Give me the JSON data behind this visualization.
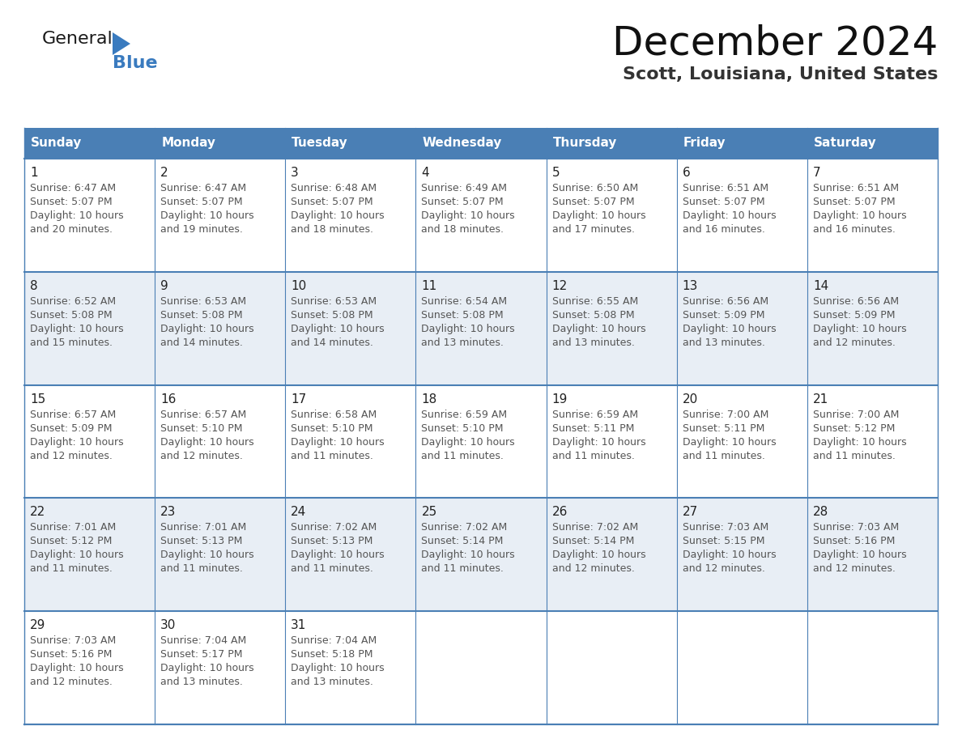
{
  "title": "December 2024",
  "subtitle": "Scott, Louisiana, United States",
  "header_color": "#4a7fb5",
  "header_text_color": "#ffffff",
  "row_colors": [
    "#ffffff",
    "#e8eef5"
  ],
  "cell_border_color": "#4a7fb5",
  "weekdays": [
    "Sunday",
    "Monday",
    "Tuesday",
    "Wednesday",
    "Thursday",
    "Friday",
    "Saturday"
  ],
  "weeks": [
    [
      {
        "day": 1,
        "sunrise": "6:47 AM",
        "sunset": "5:07 PM",
        "daylight": "10 hours\nand 20 minutes."
      },
      {
        "day": 2,
        "sunrise": "6:47 AM",
        "sunset": "5:07 PM",
        "daylight": "10 hours\nand 19 minutes."
      },
      {
        "day": 3,
        "sunrise": "6:48 AM",
        "sunset": "5:07 PM",
        "daylight": "10 hours\nand 18 minutes."
      },
      {
        "day": 4,
        "sunrise": "6:49 AM",
        "sunset": "5:07 PM",
        "daylight": "10 hours\nand 18 minutes."
      },
      {
        "day": 5,
        "sunrise": "6:50 AM",
        "sunset": "5:07 PM",
        "daylight": "10 hours\nand 17 minutes."
      },
      {
        "day": 6,
        "sunrise": "6:51 AM",
        "sunset": "5:07 PM",
        "daylight": "10 hours\nand 16 minutes."
      },
      {
        "day": 7,
        "sunrise": "6:51 AM",
        "sunset": "5:07 PM",
        "daylight": "10 hours\nand 16 minutes."
      }
    ],
    [
      {
        "day": 8,
        "sunrise": "6:52 AM",
        "sunset": "5:08 PM",
        "daylight": "10 hours\nand 15 minutes."
      },
      {
        "day": 9,
        "sunrise": "6:53 AM",
        "sunset": "5:08 PM",
        "daylight": "10 hours\nand 14 minutes."
      },
      {
        "day": 10,
        "sunrise": "6:53 AM",
        "sunset": "5:08 PM",
        "daylight": "10 hours\nand 14 minutes."
      },
      {
        "day": 11,
        "sunrise": "6:54 AM",
        "sunset": "5:08 PM",
        "daylight": "10 hours\nand 13 minutes."
      },
      {
        "day": 12,
        "sunrise": "6:55 AM",
        "sunset": "5:08 PM",
        "daylight": "10 hours\nand 13 minutes."
      },
      {
        "day": 13,
        "sunrise": "6:56 AM",
        "sunset": "5:09 PM",
        "daylight": "10 hours\nand 13 minutes."
      },
      {
        "day": 14,
        "sunrise": "6:56 AM",
        "sunset": "5:09 PM",
        "daylight": "10 hours\nand 12 minutes."
      }
    ],
    [
      {
        "day": 15,
        "sunrise": "6:57 AM",
        "sunset": "5:09 PM",
        "daylight": "10 hours\nand 12 minutes."
      },
      {
        "day": 16,
        "sunrise": "6:57 AM",
        "sunset": "5:10 PM",
        "daylight": "10 hours\nand 12 minutes."
      },
      {
        "day": 17,
        "sunrise": "6:58 AM",
        "sunset": "5:10 PM",
        "daylight": "10 hours\nand 11 minutes."
      },
      {
        "day": 18,
        "sunrise": "6:59 AM",
        "sunset": "5:10 PM",
        "daylight": "10 hours\nand 11 minutes."
      },
      {
        "day": 19,
        "sunrise": "6:59 AM",
        "sunset": "5:11 PM",
        "daylight": "10 hours\nand 11 minutes."
      },
      {
        "day": 20,
        "sunrise": "7:00 AM",
        "sunset": "5:11 PM",
        "daylight": "10 hours\nand 11 minutes."
      },
      {
        "day": 21,
        "sunrise": "7:00 AM",
        "sunset": "5:12 PM",
        "daylight": "10 hours\nand 11 minutes."
      }
    ],
    [
      {
        "day": 22,
        "sunrise": "7:01 AM",
        "sunset": "5:12 PM",
        "daylight": "10 hours\nand 11 minutes."
      },
      {
        "day": 23,
        "sunrise": "7:01 AM",
        "sunset": "5:13 PM",
        "daylight": "10 hours\nand 11 minutes."
      },
      {
        "day": 24,
        "sunrise": "7:02 AM",
        "sunset": "5:13 PM",
        "daylight": "10 hours\nand 11 minutes."
      },
      {
        "day": 25,
        "sunrise": "7:02 AM",
        "sunset": "5:14 PM",
        "daylight": "10 hours\nand 11 minutes."
      },
      {
        "day": 26,
        "sunrise": "7:02 AM",
        "sunset": "5:14 PM",
        "daylight": "10 hours\nand 12 minutes."
      },
      {
        "day": 27,
        "sunrise": "7:03 AM",
        "sunset": "5:15 PM",
        "daylight": "10 hours\nand 12 minutes."
      },
      {
        "day": 28,
        "sunrise": "7:03 AM",
        "sunset": "5:16 PM",
        "daylight": "10 hours\nand 12 minutes."
      }
    ],
    [
      {
        "day": 29,
        "sunrise": "7:03 AM",
        "sunset": "5:16 PM",
        "daylight": "10 hours\nand 12 minutes."
      },
      {
        "day": 30,
        "sunrise": "7:04 AM",
        "sunset": "5:17 PM",
        "daylight": "10 hours\nand 13 minutes."
      },
      {
        "day": 31,
        "sunrise": "7:04 AM",
        "sunset": "5:18 PM",
        "daylight": "10 hours\nand 13 minutes."
      },
      null,
      null,
      null,
      null
    ]
  ],
  "logo_color_general": "#1a1a1a",
  "logo_color_blue": "#3a7bbf",
  "logo_triangle_color": "#3a7bbf",
  "title_fontsize": 36,
  "subtitle_fontsize": 16,
  "dow_fontsize": 11,
  "day_num_fontsize": 11,
  "cell_text_fontsize": 9
}
